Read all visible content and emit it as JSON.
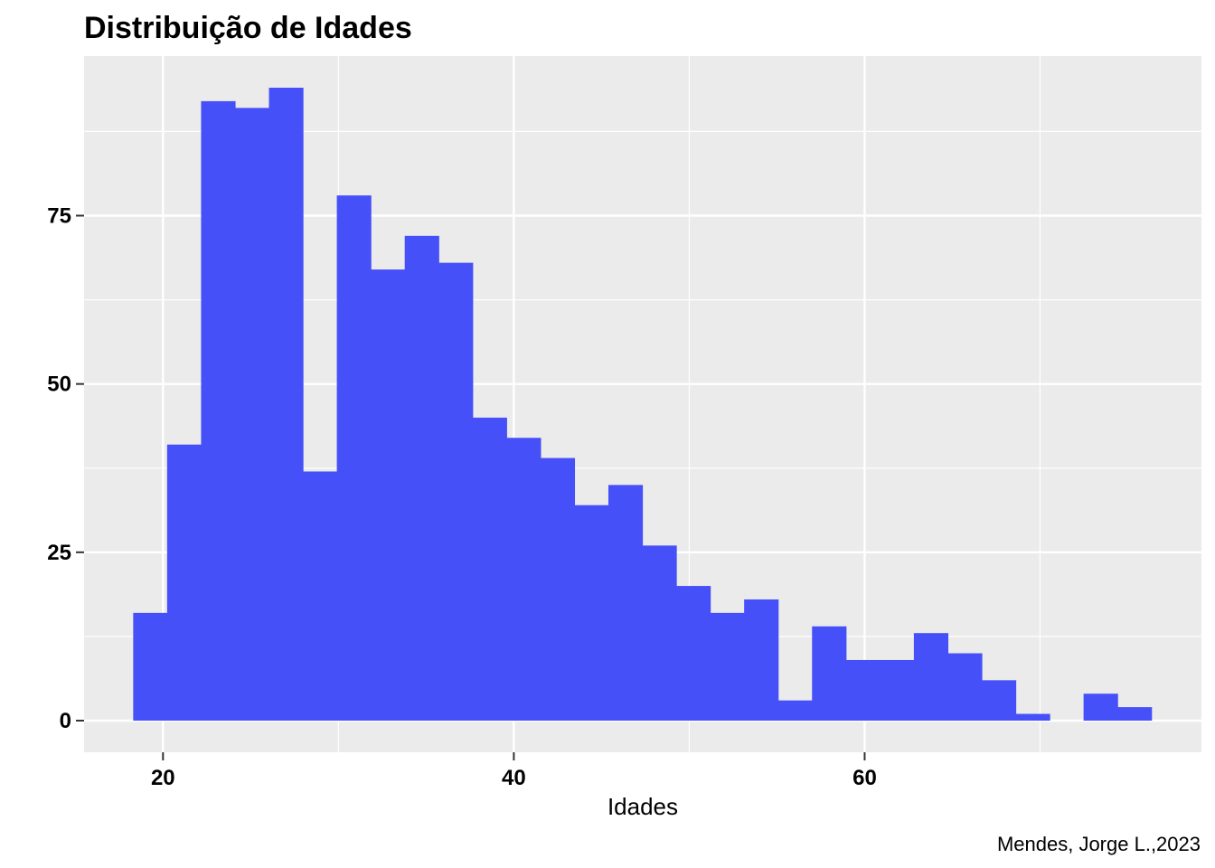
{
  "chart_data": {
    "type": "bar",
    "title": "Distribuição de Idades",
    "xlabel": "Idades",
    "ylabel": "",
    "caption": "Mendes, Jorge L.,2023",
    "bin_width": 1.935,
    "bins_start": [
      18.3,
      20.235,
      22.17,
      24.105,
      26.04,
      27.975,
      29.91,
      31.845,
      33.78,
      35.715,
      37.65,
      39.585,
      41.52,
      43.455,
      45.39,
      47.325,
      49.26,
      51.195,
      53.13,
      55.065,
      57.0,
      58.935,
      60.87,
      62.805,
      64.74,
      66.675,
      68.61,
      70.545,
      72.48,
      74.415
    ],
    "values": [
      16,
      41,
      92,
      91,
      94,
      37,
      78,
      67,
      72,
      68,
      45,
      42,
      39,
      32,
      35,
      26,
      20,
      16,
      18,
      3,
      14,
      9,
      9,
      13,
      10,
      6,
      1,
      0,
      4,
      2
    ],
    "x_ticks": [
      20,
      40,
      60
    ],
    "y_ticks": [
      0,
      25,
      50,
      75
    ],
    "xlim": [
      15.5,
      79.2
    ],
    "ylim": [
      -4.7,
      98.7
    ],
    "grid": true,
    "bar_color": "#4650F8",
    "panel_color": "#EBEBEB",
    "grid_color": "#FFFFFF"
  }
}
